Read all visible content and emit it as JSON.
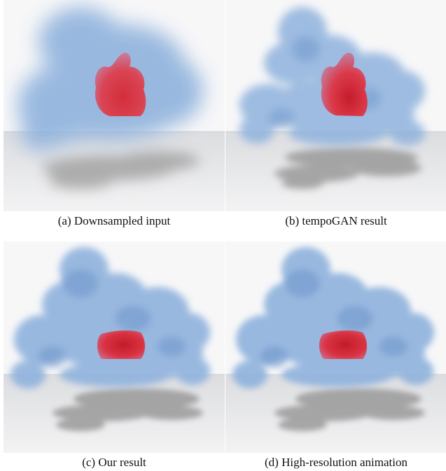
{
  "figure": {
    "panels": [
      {
        "caption": "(a) Downsampled input"
      },
      {
        "caption": "(b) tempoGAN result"
      },
      {
        "caption": "(c) Our result"
      },
      {
        "caption": "(d) High-resolution animation"
      }
    ],
    "colors": {
      "smoke": "#8fb2dd",
      "smoke_dark": "#6f97cc",
      "bunny": "#d9232c",
      "wall": "#f7f7f8",
      "floor": "#e4e5e7",
      "shadow": "#9a9a9a"
    }
  }
}
